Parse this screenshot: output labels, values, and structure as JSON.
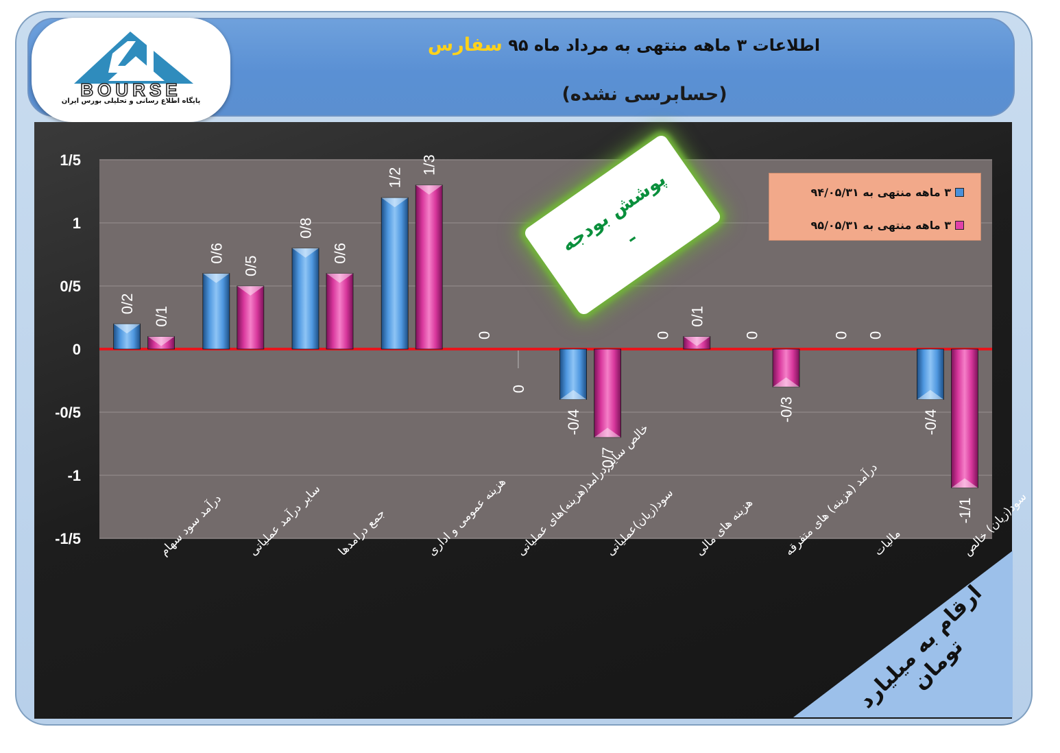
{
  "header": {
    "title_main": "اطلاعات ۳ ماهه منتهی به مرداد ماه ۹۵",
    "title_company": "سفارس",
    "subtitle": "(حسابرسی نشده)"
  },
  "logo": {
    "wordmark": "BOURSE",
    "tagline": "پایگاه اطلاع رسانی و تحلیلی بورس ایران",
    "colors": {
      "shape": "#2f8cbd",
      "text": "#222222"
    }
  },
  "budget_note": {
    "title": "پوشش بودجه",
    "value": "ـ"
  },
  "unit_note": "ارقام به میلیارد تومان",
  "chart_data": {
    "type": "bar",
    "categories": [
      "درآمد سود سهام",
      "سایر درآمد عملیاتی",
      "جمع درامدها",
      "هزینه عمومی و اداری",
      "خالص سایر درامد(هزینه)های عملیاتی",
      "سود(زیان)عملیاتی",
      "هزینه های مالی",
      "درآمد (هزینه) های متفرقه",
      "مالیات",
      "سود(زیان) خالص"
    ],
    "series": [
      {
        "name": "۳ ماهه منتهی به ۹۴/۰۵/۳۱",
        "color": "#4a90d9",
        "values": [
          0.2,
          0.6,
          0.8,
          1.2,
          0,
          -0.4,
          0,
          0,
          0,
          -0.4
        ],
        "labels": [
          "0/2",
          "0/6",
          "0/8",
          "1/2",
          "0",
          "-0/4",
          "0",
          "0",
          "0",
          "-0/4"
        ]
      },
      {
        "name": "۳ ماهه منتهی به ۹۵/۰۵/۳۱",
        "color": "#e040a8",
        "values": [
          0.1,
          0.5,
          0.6,
          1.3,
          0,
          -0.7,
          0.1,
          -0.3,
          0,
          -1.1
        ],
        "labels": [
          "0/1",
          "0/5",
          "0/6",
          "1/3",
          "0",
          "-0/7",
          "0/1",
          "-0/3",
          "0",
          "-1/1"
        ]
      }
    ],
    "ylim": [
      -1.5,
      1.5
    ],
    "yticks": [
      1.5,
      1,
      0.5,
      0,
      -0.5,
      -1,
      -1.5
    ],
    "ytick_labels": [
      "1/5",
      "1",
      "0/5",
      "0",
      "-0/5",
      "-1",
      "-1/5"
    ],
    "grid": true,
    "legend_position": "top-right",
    "zero_line_color": "#e8141c",
    "plot_background": "#736b6b"
  }
}
